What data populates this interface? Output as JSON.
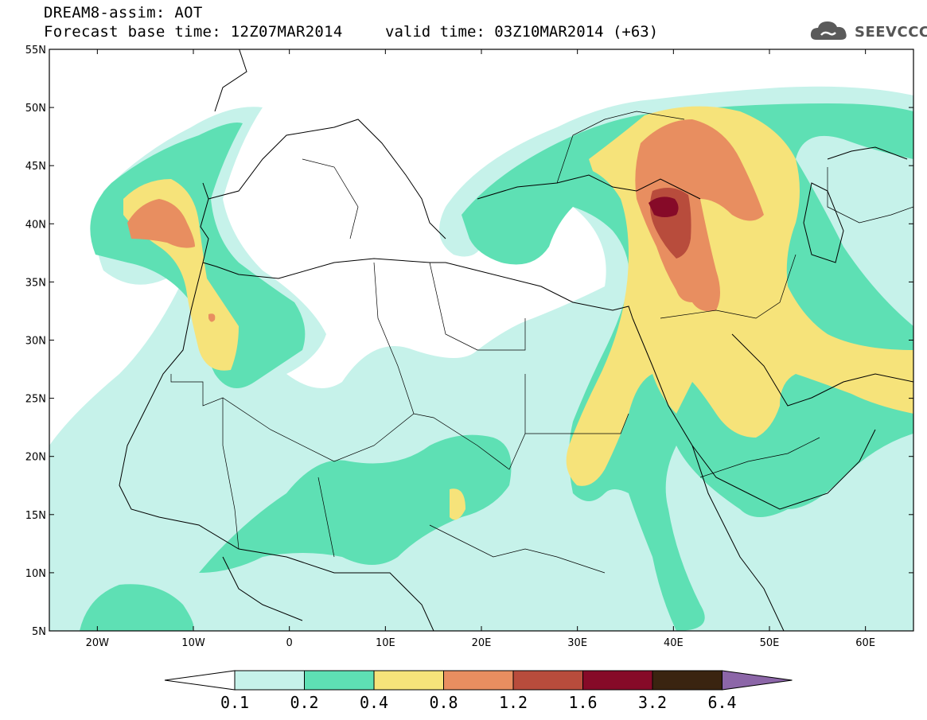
{
  "header": {
    "title_line1": "DREAM8-assim: AOT",
    "base_time": "Forecast base time: 12Z07MAR2014",
    "valid_time": "valid time: 03Z10MAR2014 (+63)",
    "logo_text": "SEEVCCC",
    "logo_icon": "cloud-icon"
  },
  "map": {
    "lon_range": [
      -25,
      65
    ],
    "lat_range": [
      5,
      55
    ],
    "lat_labels": [
      "55N",
      "50N",
      "45N",
      "40N",
      "35N",
      "30N",
      "25N",
      "20N",
      "15N",
      "10N",
      "5N"
    ],
    "lon_labels": [
      "20W",
      "10W",
      "0",
      "10E",
      "20E",
      "30E",
      "40E",
      "50E",
      "60E"
    ]
  },
  "colorbar": {
    "boundaries": [
      "0.1",
      "0.2",
      "0.4",
      "0.8",
      "1.2",
      "1.6",
      "3.2",
      "6.4"
    ],
    "colors": [
      "#c6f2ea",
      "#5ee0b4",
      "#f6e37a",
      "#e88e60",
      "#b84c3c",
      "#860a28",
      "#3a2410",
      "#8c66a8"
    ],
    "under_color": "#ffffff"
  },
  "colors": {
    "l1": "#c6f2ea",
    "l2": "#5ee0b4",
    "l3": "#f6e37a",
    "l4": "#e88e60",
    "l5": "#b84c3c",
    "l6": "#860a28"
  }
}
